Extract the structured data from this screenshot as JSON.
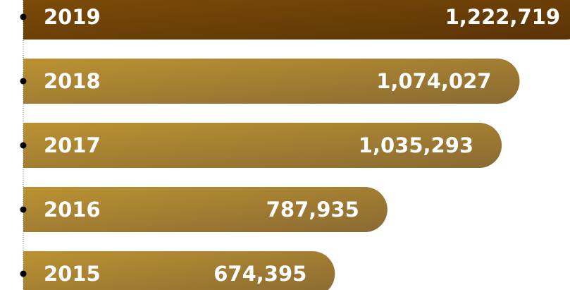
{
  "chart_data": {
    "type": "bar",
    "orientation": "horizontal",
    "categories": [
      "2019",
      "2018",
      "2017",
      "2016",
      "2015"
    ],
    "values": [
      1222719,
      1074027,
      1035293,
      787935,
      674395
    ],
    "value_labels": [
      "1,222,719",
      "1,074,027",
      "1,035,293",
      "787,935",
      "674,395"
    ],
    "colors": [
      [
        "#7d4c08",
        "#5a3306"
      ],
      [
        "#bb9232",
        "#8a6a32"
      ],
      [
        "#bb9232",
        "#8a6a32"
      ],
      [
        "#bb9232",
        "#8a6a32"
      ],
      [
        "#bb9232",
        "#8a6a32"
      ]
    ]
  }
}
